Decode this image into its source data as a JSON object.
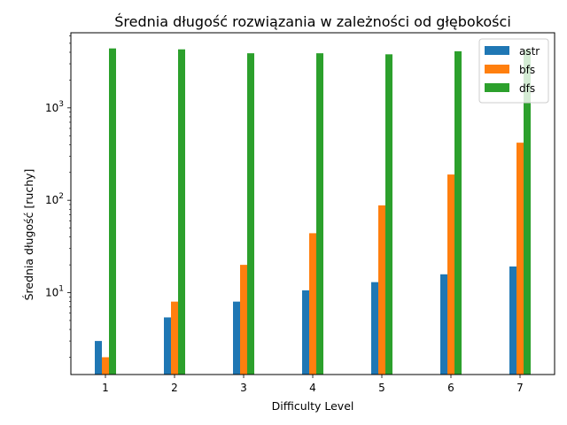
{
  "chart_data": {
    "type": "bar",
    "title": "Średnia długość rozwiązania w zależności od głębokości",
    "xlabel": "Difficulty Level",
    "ylabel": "Średnia długość [ruchy]",
    "yscale": "log",
    "ylim": [
      1.3,
      6500
    ],
    "categories": [
      "1",
      "2",
      "3",
      "4",
      "5",
      "6",
      "7"
    ],
    "series": [
      {
        "name": "astr",
        "color": "#1f77b4",
        "values": [
          3.0,
          5.4,
          8.0,
          10.6,
          13.0,
          15.8,
          19.2
        ]
      },
      {
        "name": "bfs",
        "color": "#ff7f0e",
        "values": [
          2.0,
          8.0,
          20.0,
          44.0,
          88.0,
          190.0,
          420.0
        ]
      },
      {
        "name": "dfs",
        "color": "#2ca02c",
        "values": [
          4400,
          4300,
          3900,
          3900,
          3800,
          4100,
          4300
        ]
      }
    ],
    "yticks": [
      {
        "value": 10,
        "base": "10",
        "exp": "1"
      },
      {
        "value": 100,
        "base": "10",
        "exp": "2"
      },
      {
        "value": 1000,
        "base": "10",
        "exp": "3"
      }
    ],
    "legend": "top-right",
    "grid": false
  }
}
